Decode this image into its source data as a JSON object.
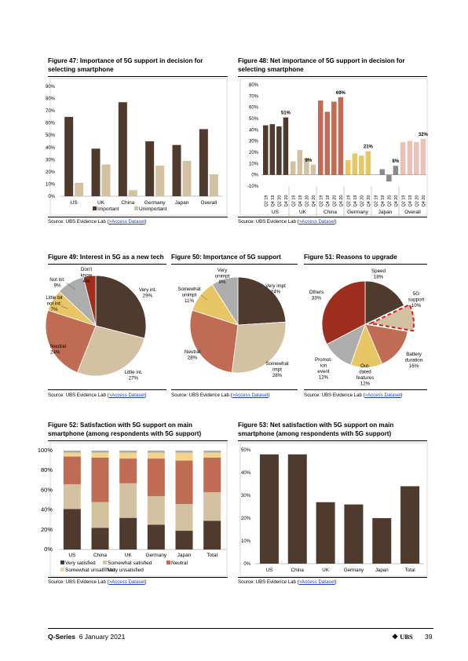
{
  "colors": {
    "dark": "#4e3b2e",
    "tan": "#d3c2a2",
    "rust": "#c06b53",
    "red": "#9e2f1f",
    "yellow": "#e8c665",
    "gray": "#adadad",
    "sand": "#f4d48a",
    "pink": "#e9c2b7",
    "slate": "#8a8a8a"
  },
  "fig47": {
    "title": "Figure 47: Importance of 5G support in decision for selecting smartphone",
    "source": "Source:  UBS Evidence Lab (",
    "link": ">Access Dataset",
    "source_end": ")",
    "chart_data": {
      "type": "bar",
      "categories": [
        "US",
        "UK",
        "China",
        "Germany",
        "Japan",
        "Overall"
      ],
      "series": [
        {
          "name": "Important",
          "values": [
            65,
            39,
            77,
            45,
            42,
            55
          ]
        },
        {
          "name": "Unimportant",
          "values": [
            11,
            26,
            5,
            25,
            29,
            18
          ]
        }
      ],
      "ylim": [
        0,
        90
      ],
      "yticks": [
        "0%",
        "10%",
        "20%",
        "30%",
        "40%",
        "50%",
        "60%",
        "70%",
        "80%",
        "90%"
      ],
      "legend": "bottom"
    }
  },
  "fig48": {
    "title": "Figure 48: Net importance of 5G support in decision for selecting smartphone",
    "source": "Source:  UBS Evidence Lab (",
    "link": ">Access Dataset",
    "source_end": ")",
    "chart_data": {
      "type": "bar",
      "groups": [
        "US",
        "UK",
        "China",
        "Germany",
        "Japan",
        "Overall"
      ],
      "quarters": [
        "Q2 19",
        "Q4 19",
        "Q2 20",
        "Q4 20"
      ],
      "values": [
        [
          44,
          45,
          43,
          51
        ],
        [
          12,
          22,
          15,
          9
        ],
        [
          66,
          56,
          65,
          69
        ],
        [
          13,
          19,
          17,
          21
        ],
        [
          0,
          5,
          -6,
          8
        ],
        [
          29,
          30,
          29,
          32
        ]
      ],
      "labels": [
        "51%",
        "9%",
        "69%",
        "21%",
        "8%",
        "32%"
      ],
      "ylim": [
        -10,
        80
      ],
      "yticks": [
        "-10%",
        "0%",
        "10%",
        "20%",
        "30%",
        "40%",
        "50%",
        "60%",
        "70%",
        "80%"
      ]
    }
  },
  "fig49": {
    "title": "Figure 49: Interest in 5G as a new tech",
    "source": "Source:  UBS Evidence Lab (",
    "link": ">Access Dataset",
    "source_end": ")",
    "chart_data": {
      "type": "pie",
      "labels": [
        "Very int.",
        "Little int.",
        "Neutral",
        "Little bit not int.",
        "Not int.",
        "Don't know"
      ],
      "values": [
        29,
        27,
        24,
        7,
        9,
        4
      ]
    }
  },
  "fig50": {
    "title": "Figure 50: Importance of 5G support",
    "source": "Source:  UBS Evidence Lab (",
    "link": ">Access Dataset",
    "source_end": ")",
    "chart_data": {
      "type": "pie",
      "labels": [
        "Very impt",
        "Somewhat impt",
        "Neutral",
        "Somewhat unimpt",
        "Very unimpt"
      ],
      "values": [
        24,
        28,
        28,
        11,
        9
      ]
    }
  },
  "fig51": {
    "title": "Figure 51: Reasons to upgrade",
    "source": "Source:  UBS Evidence Lab (",
    "link": ">Access Dataset",
    "source_end": ")",
    "chart_data": {
      "type": "pie",
      "labels": [
        "Speed",
        "5G support",
        "Battery duration",
        "Out-dated features",
        "Promot-ion event",
        "Others"
      ],
      "values": [
        18,
        10,
        16,
        12,
        12,
        33
      ]
    }
  },
  "fig52": {
    "title": "Figure 52: Satisfaction with 5G support on main smartphone (among respondents with 5G support)",
    "source": "Source:  UBS Evidence Lab (",
    "link": ">Access Dataset",
    "source_end": ")",
    "chart_data": {
      "type": "bar",
      "stacked": true,
      "categories": [
        "US",
        "China",
        "UK",
        "Germany",
        "Japan",
        "Total"
      ],
      "series": [
        {
          "name": "Very satisfied",
          "values": [
            41,
            22,
            32,
            25,
            19,
            29
          ]
        },
        {
          "name": "Somewhat satisfied",
          "values": [
            25,
            26,
            35,
            29,
            27,
            29
          ]
        },
        {
          "name": "Neutral",
          "values": [
            28,
            45,
            25,
            38,
            44,
            35
          ]
        },
        {
          "name": "Somewhat unsatisfied",
          "values": [
            4,
            5,
            6,
            6,
            8,
            5
          ]
        },
        {
          "name": "Very unsatisfied",
          "values": [
            2,
            2,
            2,
            2,
            2,
            2
          ]
        }
      ],
      "ylim": [
        0,
        100
      ],
      "yticks": [
        "0%",
        "20%",
        "40%",
        "60%",
        "80%",
        "100%"
      ]
    }
  },
  "fig53": {
    "title": "Figure 53: Net satisfaction with 5G support on main smartphone (among respondents with 5G support)",
    "source": "Source:  UBS Evidence Lab (",
    "link": ">Access Dataset",
    "source_end": ")",
    "chart_data": {
      "type": "bar",
      "categories": [
        "US",
        "China",
        "UK",
        "Germany",
        "Japan",
        "Total"
      ],
      "values": [
        48,
        48,
        27,
        26,
        20,
        34
      ],
      "ylim": [
        0,
        50
      ],
      "yticks": [
        "0%",
        "10%",
        "20%",
        "30%",
        "40%",
        "50%"
      ]
    }
  },
  "footer": {
    "series": "Q-Series",
    "date": "6 January 2021",
    "brand": "UBS",
    "page": "39"
  }
}
